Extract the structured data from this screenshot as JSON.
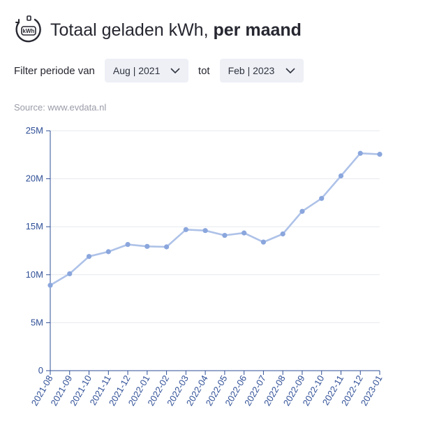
{
  "header": {
    "title_regular": "Totaal geladen kWh,",
    "title_bold": "per maand",
    "icon": "kwh-charger-icon",
    "icon_text": "kWh"
  },
  "filter": {
    "label": "Filter periode van",
    "from_value": "Aug | 2021",
    "to_label": "tot",
    "to_value": "Feb | 2023"
  },
  "source": "Source: www.evdata.nl",
  "colors": {
    "line": "#aec2e8",
    "point": "#8aa6dd",
    "axis": "#2f4f97",
    "grid": "#e6e8ee",
    "select_bg": "#eef0f6"
  },
  "chart_data": {
    "type": "line",
    "categories": [
      "2021-08",
      "2021-09",
      "2021-10",
      "2021-11",
      "2021-12",
      "2022-01",
      "2022-02",
      "2022-03",
      "2022-04",
      "2022-05",
      "2022-06",
      "2022-07",
      "2022-08",
      "2022-09",
      "2022-10",
      "2022-11",
      "2022-12",
      "2023-01"
    ],
    "values": [
      8900000,
      10100000,
      11900000,
      12400000,
      13150000,
      12950000,
      12900000,
      14700000,
      14600000,
      14100000,
      14350000,
      13400000,
      14250000,
      16600000,
      17950000,
      20300000,
      22650000,
      22550000
    ],
    "ylim": [
      0,
      25000000
    ],
    "yticks": [
      0,
      5000000,
      10000000,
      15000000,
      20000000,
      25000000
    ],
    "ytick_labels": [
      "0",
      "5M",
      "10M",
      "15M",
      "20M",
      "25M"
    ],
    "grid": true
  }
}
